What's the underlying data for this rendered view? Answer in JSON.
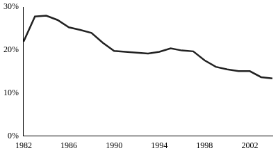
{
  "chart_data": {
    "type": "line",
    "x": [
      1982,
      1983,
      1984,
      1985,
      1986,
      1987,
      1988,
      1989,
      1990,
      1991,
      1992,
      1993,
      1994,
      1995,
      1996,
      1997,
      1998,
      1999,
      2000,
      2001,
      2002,
      2003,
      2004
    ],
    "values": [
      22,
      27.8,
      28,
      27,
      25.3,
      24.7,
      24,
      21.7,
      19.8,
      19.6,
      19.4,
      19.2,
      19.6,
      20.4,
      19.9,
      19.7,
      17.6,
      16.1,
      15.5,
      15.1,
      15.1,
      13.7,
      13.4
    ],
    "color": "#222222",
    "xlim": [
      1982,
      2004
    ],
    "xticks": [
      1982,
      1986,
      1990,
      1994,
      1998,
      2002
    ],
    "ylim": [
      0,
      30
    ],
    "yticks": [
      {
        "value": 0,
        "label": "0%"
      },
      {
        "value": 10,
        "label": "10%"
      },
      {
        "value": 20,
        "label": "20%"
      },
      {
        "value": 30,
        "label": "30%"
      }
    ],
    "grid": false
  }
}
